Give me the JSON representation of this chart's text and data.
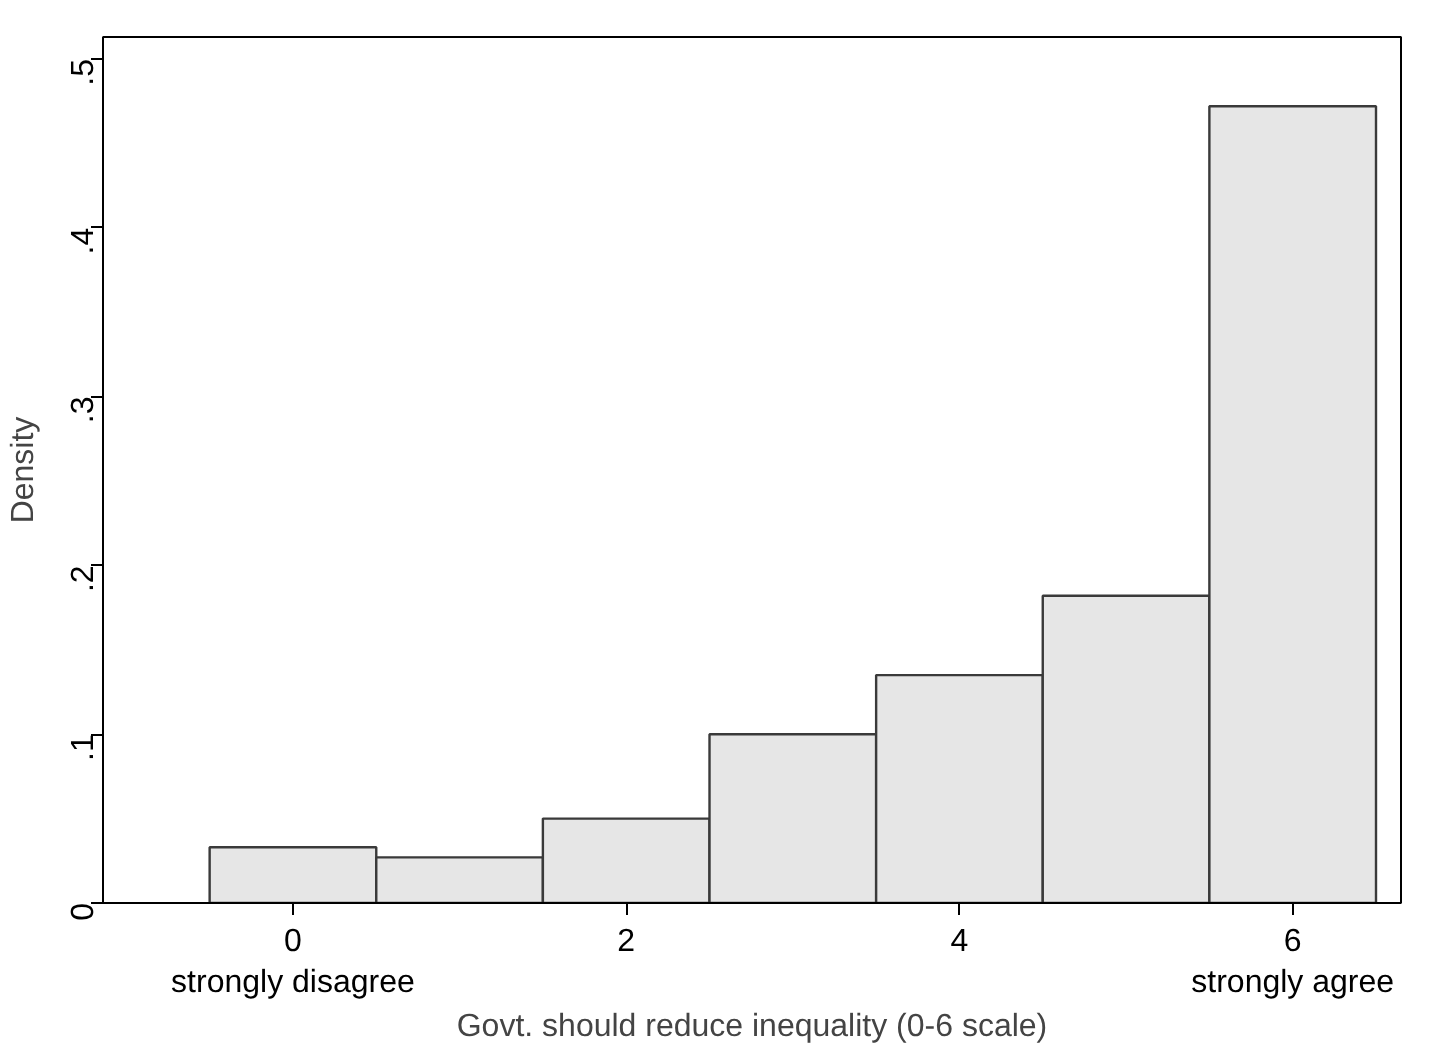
{
  "chart_data": {
    "type": "histogram",
    "xlabel": "Govt. should reduce inequality (0-6 scale)",
    "ylabel": "Density",
    "bins": [
      -0.5,
      0.5,
      1.5,
      2.5,
      3.5,
      4.5,
      5.5,
      6.5
    ],
    "values": [
      0.033,
      0.027,
      0.05,
      0.1,
      0.135,
      0.182,
      0.472
    ],
    "color": "#e6e6e6",
    "xlim": [
      -1.14,
      6.65
    ],
    "ylim": [
      0,
      0.513
    ],
    "xticks": [
      {
        "value": 0,
        "label": "0\nstrongly disagree"
      },
      2,
      4,
      {
        "value": 6,
        "label": "6\nstrongly agree"
      }
    ],
    "yticks": [
      0,
      {
        "value": 0.1,
        "label": ".1"
      },
      {
        "value": 0.2,
        "label": ".2"
      },
      {
        "value": 0.3,
        "label": ".3"
      },
      {
        "value": 0.4,
        "label": ".4"
      },
      {
        "value": 0.5,
        "label": ".5"
      }
    ],
    "grid": false
  }
}
